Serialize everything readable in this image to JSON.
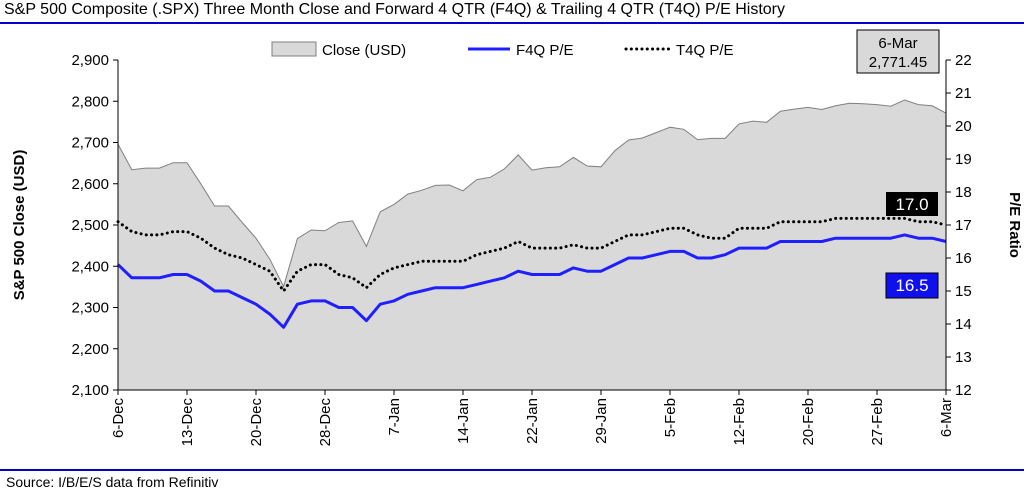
{
  "title": "S&P 500 Composite (.SPX) Three Month Close and Forward 4 QTR (F4Q) & Trailing 4 QTR (T4Q) P/E History",
  "source": "Source: I/B/E/S data from Refinitiv",
  "colors": {
    "rule": "#0000cc",
    "area_fill": "#d9d9d9",
    "area_stroke": "#808080",
    "f4q_line": "#1f1fff",
    "t4q_line": "#000000",
    "t4q_label_bg": "#000000",
    "f4q_label_bg": "#1010ee",
    "callout_bg": "#d9d9d9"
  },
  "chart_data": {
    "type": "area+line",
    "x_tick_labels": [
      "6-Dec",
      "13-Dec",
      "20-Dec",
      "28-Dec",
      "7-Jan",
      "14-Jan",
      "22-Jan",
      "29-Jan",
      "5-Feb",
      "12-Feb",
      "20-Feb",
      "27-Feb",
      "6-Mar"
    ],
    "x_tick_indices": [
      0,
      5,
      10,
      15,
      20,
      25,
      30,
      35,
      40,
      45,
      50,
      55,
      60
    ],
    "y_left": {
      "label": "S&P 500 Close (USD)",
      "min": 2100,
      "max": 2900,
      "ticks": [
        "2,100",
        "2,200",
        "2,300",
        "2,400",
        "2,500",
        "2,600",
        "2,700",
        "2,800",
        "2,900"
      ]
    },
    "y_right": {
      "label": "P/E Ratio",
      "min": 12,
      "max": 22,
      "ticks": [
        "12",
        "13",
        "14",
        "15",
        "16",
        "17",
        "18",
        "19",
        "20",
        "21",
        "22"
      ]
    },
    "legend": [
      "Close (USD)",
      "F4Q P/E",
      "T4Q P/E"
    ],
    "callout": {
      "date": "6-Mar",
      "value": "2,771.45"
    },
    "end_labels": {
      "t4q": "17.0",
      "f4q": "16.5"
    },
    "series": [
      {
        "name": "Close (USD)",
        "axis": "left",
        "kind": "area",
        "values": [
          2696,
          2634,
          2638,
          2638,
          2651,
          2651,
          2600,
          2546,
          2546,
          2506,
          2468,
          2417,
          2351,
          2467,
          2488,
          2486,
          2506,
          2510,
          2448,
          2532,
          2550,
          2575,
          2584,
          2596,
          2597,
          2583,
          2610,
          2616,
          2636,
          2670,
          2633,
          2639,
          2641,
          2664,
          2643,
          2641,
          2680,
          2706,
          2711,
          2724,
          2737,
          2732,
          2707,
          2710,
          2710,
          2745,
          2752,
          2749,
          2776,
          2781,
          2785,
          2780,
          2789,
          2795,
          2794,
          2792,
          2788,
          2803,
          2792,
          2789,
          2771
        ]
      },
      {
        "name": "F4Q P/E",
        "axis": "right",
        "kind": "line",
        "values": [
          15.8,
          15.4,
          15.4,
          15.4,
          15.5,
          15.5,
          15.3,
          15.0,
          15.0,
          14.8,
          14.6,
          14.3,
          13.9,
          14.6,
          14.7,
          14.7,
          14.5,
          14.5,
          14.1,
          14.6,
          14.7,
          14.9,
          15.0,
          15.1,
          15.1,
          15.1,
          15.2,
          15.3,
          15.4,
          15.6,
          15.5,
          15.5,
          15.5,
          15.7,
          15.6,
          15.6,
          15.8,
          16.0,
          16.0,
          16.1,
          16.2,
          16.2,
          16.0,
          16.0,
          16.1,
          16.3,
          16.3,
          16.3,
          16.5,
          16.5,
          16.5,
          16.5,
          16.6,
          16.6,
          16.6,
          16.6,
          16.6,
          16.7,
          16.6,
          16.6,
          16.5
        ]
      },
      {
        "name": "T4Q P/E",
        "axis": "right",
        "kind": "line",
        "values": [
          17.1,
          16.8,
          16.7,
          16.7,
          16.8,
          16.8,
          16.6,
          16.3,
          16.1,
          16.0,
          15.8,
          15.6,
          15.0,
          15.6,
          15.8,
          15.8,
          15.5,
          15.4,
          15.1,
          15.5,
          15.7,
          15.8,
          15.9,
          15.9,
          15.9,
          15.9,
          16.1,
          16.2,
          16.3,
          16.5,
          16.3,
          16.3,
          16.3,
          16.4,
          16.3,
          16.3,
          16.5,
          16.7,
          16.7,
          16.8,
          16.9,
          16.9,
          16.7,
          16.6,
          16.6,
          16.9,
          16.9,
          16.9,
          17.1,
          17.1,
          17.1,
          17.1,
          17.2,
          17.2,
          17.2,
          17.2,
          17.2,
          17.2,
          17.1,
          17.1,
          17.0
        ]
      }
    ]
  }
}
